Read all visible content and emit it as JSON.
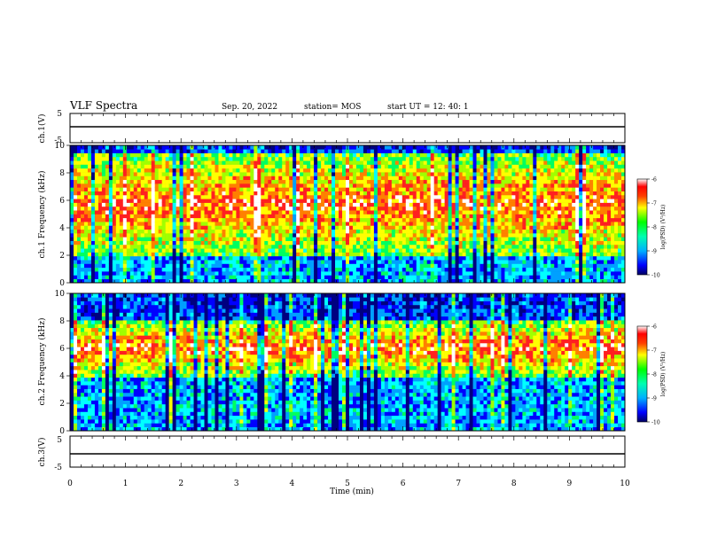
{
  "header": {
    "title": "VLF Spectra",
    "date": "Sep. 20, 2022",
    "station": "station= MOS",
    "start_ut": "start  UT  =   12: 40: 1"
  },
  "chart_data": [
    {
      "type": "line",
      "panel": "ch1-voltage",
      "ylabel": "ch.1(V)",
      "yticks": [
        "5",
        "-5"
      ],
      "ylim": [
        -5,
        5
      ],
      "x": [
        0,
        10
      ],
      "series": [
        {
          "values": [
            0,
            0
          ]
        }
      ]
    },
    {
      "type": "heatmap",
      "panel": "ch1-spectrogram",
      "ylabel": "ch.1 Frequency (kHz)",
      "ylim": [
        0,
        10
      ],
      "yticks": [
        "0",
        "2",
        "4",
        "6",
        "8",
        "10"
      ],
      "xlim": [
        0,
        10
      ],
      "colorbar": {
        "label": "log(PSD) (V²/Hz)",
        "ticks": [
          "-6",
          "-7",
          "-8",
          "-9",
          "-10"
        ],
        "range": [
          -10,
          -6
        ]
      },
      "dominant_band_khz": [
        2,
        9.5
      ]
    },
    {
      "type": "heatmap",
      "panel": "ch2-spectrogram",
      "ylabel": "ch.2 Frequency (kHz)",
      "ylim": [
        0,
        10
      ],
      "yticks": [
        "0",
        "2",
        "4",
        "6",
        "8",
        "10"
      ],
      "xlim": [
        0,
        10
      ],
      "colorbar": {
        "label": "log(PSD) (V²/Hz)",
        "ticks": [
          "-6",
          "-7",
          "-8",
          "-9",
          "-10"
        ],
        "range": [
          -10,
          -6
        ]
      },
      "dominant_band_khz": [
        4,
        8
      ]
    },
    {
      "type": "line",
      "panel": "ch3-voltage",
      "ylabel": "ch.3(V)",
      "yticks": [
        "5",
        "-5"
      ],
      "ylim": [
        -5,
        5
      ],
      "x": [
        0,
        10
      ],
      "series": [
        {
          "values": [
            0,
            0
          ]
        }
      ]
    }
  ],
  "xaxis": {
    "label": "Time  (min)",
    "ticks": [
      "0",
      "1",
      "2",
      "3",
      "4",
      "5",
      "6",
      "7",
      "8",
      "9",
      "10"
    ]
  },
  "colors": {
    "palette": [
      "#000080",
      "#0000ff",
      "#00a0ff",
      "#00ffff",
      "#00ff60",
      "#a0ff00",
      "#ffff00",
      "#ff8000",
      "#ff2020",
      "#ffffff"
    ]
  }
}
